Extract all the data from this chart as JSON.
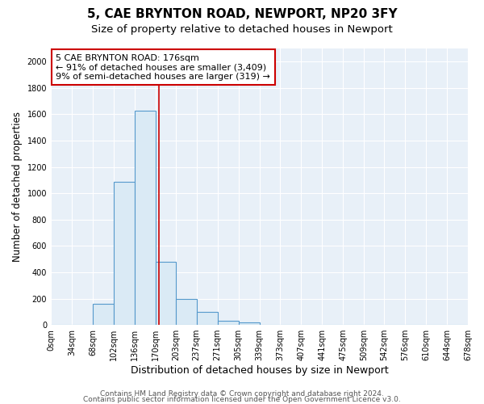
{
  "title1": "5, CAE BRYNTON ROAD, NEWPORT, NP20 3FY",
  "title2": "Size of property relative to detached houses in Newport",
  "xlabel": "Distribution of detached houses by size in Newport",
  "ylabel": "Number of detached properties",
  "bin_edges": [
    0,
    34,
    68,
    102,
    136,
    170,
    203,
    237,
    271,
    305,
    339,
    373,
    407,
    441,
    475,
    509,
    542,
    576,
    610,
    644,
    678
  ],
  "bar_heights": [
    0,
    0,
    160,
    1090,
    1630,
    480,
    200,
    100,
    35,
    20,
    0,
    0,
    0,
    0,
    0,
    0,
    0,
    0,
    0,
    0
  ],
  "bar_color": "#daeaf5",
  "bar_edgecolor": "#5599cc",
  "property_size": 176,
  "vline_color": "#cc0000",
  "annotation_line1": "5 CAE BRYNTON ROAD: 176sqm",
  "annotation_line2": "← 91% of detached houses are smaller (3,409)",
  "annotation_line3": "9% of semi-detached houses are larger (319) →",
  "annotation_box_color": "white",
  "annotation_box_edgecolor": "#cc0000",
  "ylim": [
    0,
    2100
  ],
  "xlim": [
    0,
    678
  ],
  "yticks": [
    0,
    200,
    400,
    600,
    800,
    1000,
    1200,
    1400,
    1600,
    1800,
    2000
  ],
  "xtick_labels": [
    "0sqm",
    "34sqm",
    "68sqm",
    "102sqm",
    "136sqm",
    "170sqm",
    "203sqm",
    "237sqm",
    "271sqm",
    "305sqm",
    "339sqm",
    "373sqm",
    "407sqm",
    "441sqm",
    "475sqm",
    "509sqm",
    "542sqm",
    "576sqm",
    "610sqm",
    "644sqm",
    "678sqm"
  ],
  "footer1": "Contains HM Land Registry data © Crown copyright and database right 2024.",
  "footer2": "Contains public sector information licensed under the Open Government Licence v3.0.",
  "bg_color": "#ffffff",
  "plot_bg_color": "#e8f0f8",
  "title1_fontsize": 11,
  "title2_fontsize": 9.5,
  "xlabel_fontsize": 9,
  "ylabel_fontsize": 8.5,
  "tick_fontsize": 7,
  "annotation_fontsize": 8,
  "footer_fontsize": 6.5
}
